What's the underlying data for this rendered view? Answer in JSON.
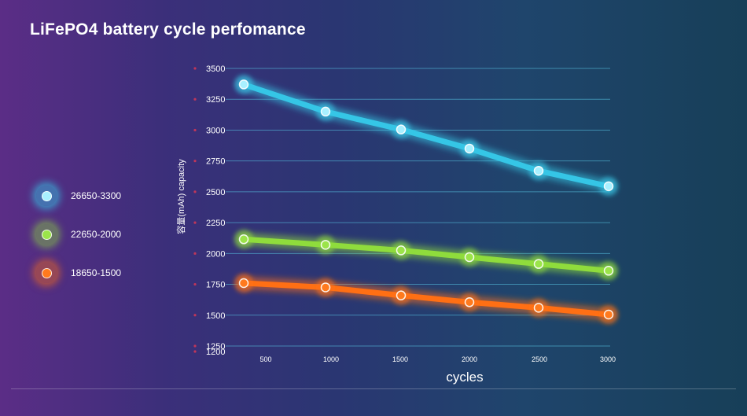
{
  "title": "LiFePO4 battery cycle perfomance",
  "chart_data": {
    "type": "line",
    "xlabel": "cycles",
    "ylabel": "容量(mAh)  capacity",
    "x": [
      500,
      1000,
      1500,
      2000,
      2500,
      3000
    ],
    "y_ticks": [
      3500,
      3250,
      3000,
      2750,
      2500,
      2250,
      2000,
      1750,
      1500,
      1250,
      1200
    ],
    "ylim": [
      1200,
      3500
    ],
    "grid": true,
    "legend_position": "left",
    "series": [
      {
        "name": "26650-3300",
        "color": "#35c6e6",
        "values": [
          3370,
          3150,
          3005,
          2850,
          2670,
          2545
        ]
      },
      {
        "name": "22650-2000",
        "color": "#8fdc3c",
        "values": [
          2115,
          2070,
          2025,
          1970,
          1915,
          1860
        ]
      },
      {
        "name": "18650-1500",
        "color": "#ff6f14",
        "values": [
          1760,
          1725,
          1660,
          1605,
          1560,
          1505
        ]
      }
    ]
  }
}
